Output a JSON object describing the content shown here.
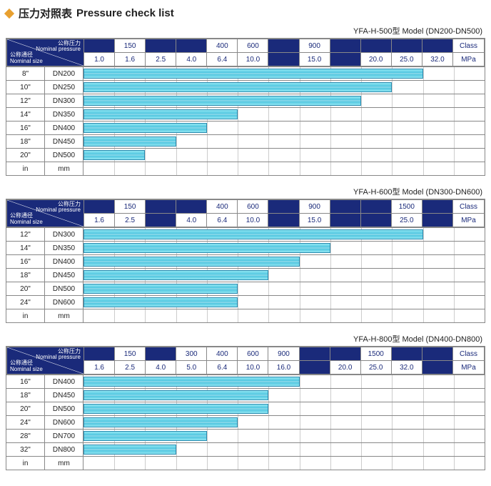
{
  "title_cn": "压力对照表",
  "title_en": "Pressure check list",
  "corner": {
    "top_cn": "公称压力",
    "top_en": "Nominal pressure",
    "bot_cn": "公称通径",
    "bot_en": "Nominal size"
  },
  "footer": {
    "in": "in",
    "mm": "mm"
  },
  "class_label": "Class",
  "mpa_label": "MPa",
  "colors": {
    "header_bg": "#1a2a7a",
    "border": "#888888",
    "bar_border": "#2a8bb0",
    "diamond": "#e8a030"
  },
  "tables": [
    {
      "model": "YFA-H-500型  Model (DN200-DN500)",
      "class_row": [
        "",
        "150",
        "",
        "",
        "400",
        "600",
        "",
        "900",
        "",
        "",
        "",
        ""
      ],
      "mpa_row": [
        "1.0",
        "1.6",
        "2.5",
        "4.0",
        "6.4",
        "10.0",
        "",
        "15.0",
        "",
        "20.0",
        "25.0",
        "32.0"
      ],
      "col_count": 12,
      "rows": [
        {
          "in": "8\"",
          "mm": "DN200",
          "bar_cols": 11
        },
        {
          "in": "10\"",
          "mm": "DN250",
          "bar_cols": 10
        },
        {
          "in": "12\"",
          "mm": "DN300",
          "bar_cols": 9
        },
        {
          "in": "14\"",
          "mm": "DN350",
          "bar_cols": 5
        },
        {
          "in": "16\"",
          "mm": "DN400",
          "bar_cols": 4
        },
        {
          "in": "18\"",
          "mm": "DN450",
          "bar_cols": 3
        },
        {
          "in": "20\"",
          "mm": "DN500",
          "bar_cols": 2
        }
      ]
    },
    {
      "model": "YFA-H-600型  Model (DN300-DN600)",
      "class_row": [
        "",
        "150",
        "",
        "",
        "400",
        "600",
        "",
        "900",
        "",
        "",
        "1500",
        ""
      ],
      "mpa_row": [
        "1.6",
        "2.5",
        "",
        "4.0",
        "6.4",
        "10.0",
        "",
        "15.0",
        "",
        "",
        "25.0",
        ""
      ],
      "col_count": 12,
      "rows": [
        {
          "in": "12\"",
          "mm": "DN300",
          "bar_cols": 11
        },
        {
          "in": "14\"",
          "mm": "DN350",
          "bar_cols": 8
        },
        {
          "in": "16\"",
          "mm": "DN400",
          "bar_cols": 7
        },
        {
          "in": "18\"",
          "mm": "DN450",
          "bar_cols": 6
        },
        {
          "in": "20\"",
          "mm": "DN500",
          "bar_cols": 5
        },
        {
          "in": "24\"",
          "mm": "DN600",
          "bar_cols": 5
        }
      ]
    },
    {
      "model": "YFA-H-800型  Model (DN400-DN800)",
      "class_row": [
        "",
        "150",
        "",
        "300",
        "400",
        "600",
        "900",
        "",
        "",
        "1500",
        "",
        ""
      ],
      "mpa_row": [
        "1.6",
        "2.5",
        "4.0",
        "5.0",
        "6.4",
        "10.0",
        "16.0",
        "",
        "20.0",
        "25.0",
        "32.0",
        ""
      ],
      "col_count": 12,
      "rows": [
        {
          "in": "16\"",
          "mm": "DN400",
          "bar_cols": 7
        },
        {
          "in": "18\"",
          "mm": "DN450",
          "bar_cols": 6
        },
        {
          "in": "20\"",
          "mm": "DN500",
          "bar_cols": 6
        },
        {
          "in": "24\"",
          "mm": "DN600",
          "bar_cols": 5
        },
        {
          "in": "28\"",
          "mm": "DN700",
          "bar_cols": 4
        },
        {
          "in": "32\"",
          "mm": "DN800",
          "bar_cols": 3
        }
      ]
    }
  ]
}
